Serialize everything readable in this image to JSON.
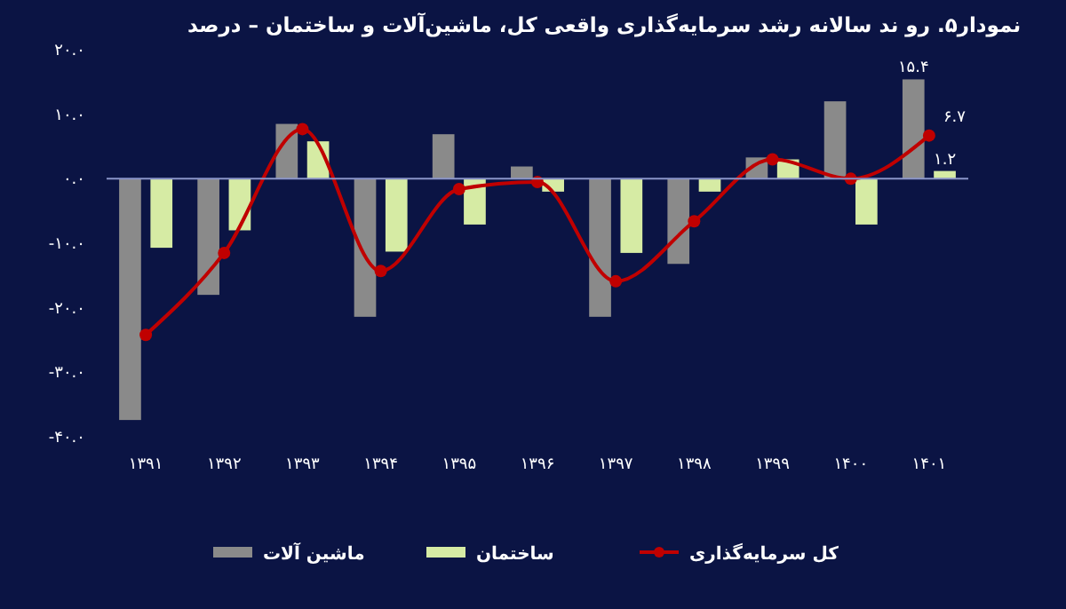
{
  "chart_data": {
    "type": "bar",
    "title": "نمودار۵. رو ند سالانه رشد سرمایه‌گذاری واقعی کل، ماشین‌آلات و ساختمان – درصد",
    "categories": [
      "۱۳۹۱",
      "۱۳۹۲",
      "۱۳۹۳",
      "۱۳۹۴",
      "۱۳۹۵",
      "۱۳۹۶",
      "۱۳۹۷",
      "۱۳۹۸",
      "۱۳۹۹",
      "۱۴۰۰",
      "۱۴۰۱"
    ],
    "series": [
      {
        "name": "ماشین آلات",
        "color": "#8a8a8a",
        "values": [
          -37.4,
          -18,
          8.5,
          -21.4,
          6.9,
          1.9,
          -21.4,
          -13.2,
          3.3,
          12,
          15.4
        ],
        "value_labels": [
          null,
          null,
          null,
          null,
          null,
          null,
          null,
          null,
          null,
          null,
          "۱۵.۴"
        ]
      },
      {
        "name": "ساختمان",
        "color": "#d6eba4",
        "values": [
          -10.7,
          -8,
          5.8,
          -11.3,
          -7.1,
          -2,
          -11.5,
          -2,
          3,
          -7.1,
          1.2
        ],
        "value_labels": [
          null,
          null,
          null,
          null,
          null,
          null,
          null,
          null,
          null,
          null,
          "۱.۲"
        ]
      },
      {
        "name": "کل سرمایه‌گذاری",
        "type": "line",
        "color": "#c00000",
        "marker": "circle",
        "values": [
          -24.2,
          -11.5,
          7.7,
          -14.3,
          -1.6,
          -0.5,
          -15.9,
          -6.6,
          3,
          0,
          6.7
        ],
        "value_labels": [
          null,
          null,
          null,
          null,
          null,
          null,
          null,
          null,
          null,
          null,
          "۶.۷"
        ]
      }
    ],
    "ylim": [
      -40,
      20
    ],
    "yticks": [
      {
        "value": 20,
        "label": "۲۰.۰"
      },
      {
        "value": 10,
        "label": "۱۰.۰"
      },
      {
        "value": 0,
        "label": "۰.۰"
      },
      {
        "value": -10,
        "label": "-۱۰.۰"
      },
      {
        "value": -20,
        "label": "-۲۰.۰"
      },
      {
        "value": -30,
        "label": "-۳۰.۰"
      },
      {
        "value": -40,
        "label": "-۴۰.۰"
      }
    ],
    "ref_lines": [
      {
        "axis": "y",
        "value": 0,
        "color": "#8a94c8"
      }
    ],
    "grid": false,
    "legend": "bottom"
  }
}
